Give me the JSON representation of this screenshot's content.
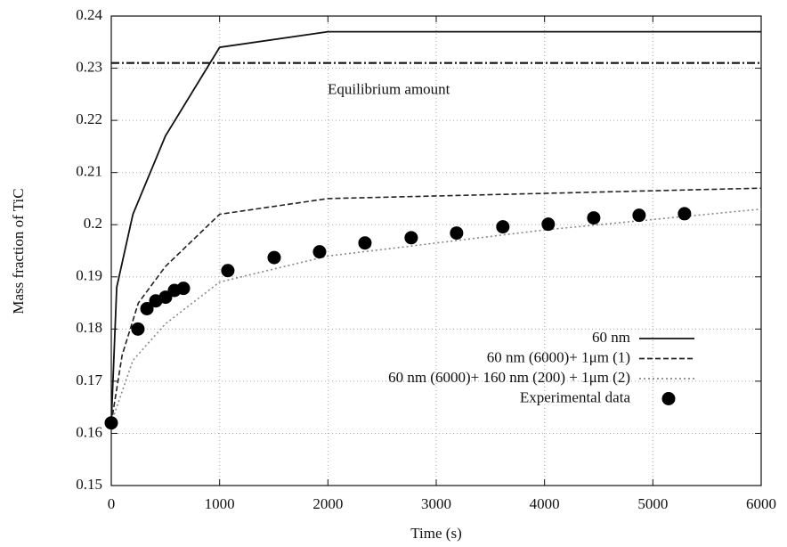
{
  "chart_data": {
    "type": "line",
    "x_label": "Time (s)",
    "y_label": "Mass fraction of TiC",
    "xlim": [
      0,
      6000
    ],
    "xticks": [
      0,
      1000,
      2000,
      3000,
      4000,
      5000,
      6000
    ],
    "ylim": [
      0.15,
      0.24
    ],
    "yticks": [
      0.15,
      0.16,
      0.17,
      0.18,
      0.19,
      0.2,
      0.21,
      0.22,
      0.23,
      0.24
    ],
    "grid": true,
    "legend": "lower right",
    "reference_line": {
      "value": 0.231,
      "label": "Equilibrium amount",
      "color": "#111"
    },
    "series": [
      {
        "name": "60 nm",
        "color": "#111",
        "style": "solid",
        "x": [
          0,
          50,
          200,
          500,
          1000,
          2000,
          6000
        ],
        "values": [
          0.162,
          0.188,
          0.202,
          0.217,
          0.234,
          0.237,
          0.237
        ]
      },
      {
        "name": "60 nm (6000)+ 1μm (1)",
        "color": "#222",
        "style": "dashed",
        "x": [
          0,
          100,
          250,
          500,
          1000,
          2000,
          6000
        ],
        "values": [
          0.162,
          0.175,
          0.185,
          0.192,
          0.202,
          0.205,
          0.207
        ]
      },
      {
        "name": "60 nm (6000)+ 160 nm (200) + 1μm (2)",
        "color": "#888",
        "style": "dotted",
        "x": [
          0,
          200,
          500,
          1000,
          2000,
          4000,
          6000
        ],
        "values": [
          0.162,
          0.174,
          0.181,
          0.189,
          0.194,
          0.199,
          0.203
        ]
      },
      {
        "name": "Experimental data",
        "color": "#000",
        "style": "marker",
        "x": [
          0,
          246,
          329,
          411,
          501,
          583,
          666,
          1076,
          1504,
          1923,
          2342,
          2769,
          3188,
          3615,
          4034,
          4454,
          4873,
          5292
        ],
        "values": [
          0.162,
          0.18,
          0.1839,
          0.1854,
          0.1861,
          0.1874,
          0.1878,
          0.1912,
          0.1937,
          0.1948,
          0.1965,
          0.1975,
          0.1984,
          0.1996,
          0.2001,
          0.2013,
          0.2018,
          0.2021
        ]
      }
    ]
  }
}
